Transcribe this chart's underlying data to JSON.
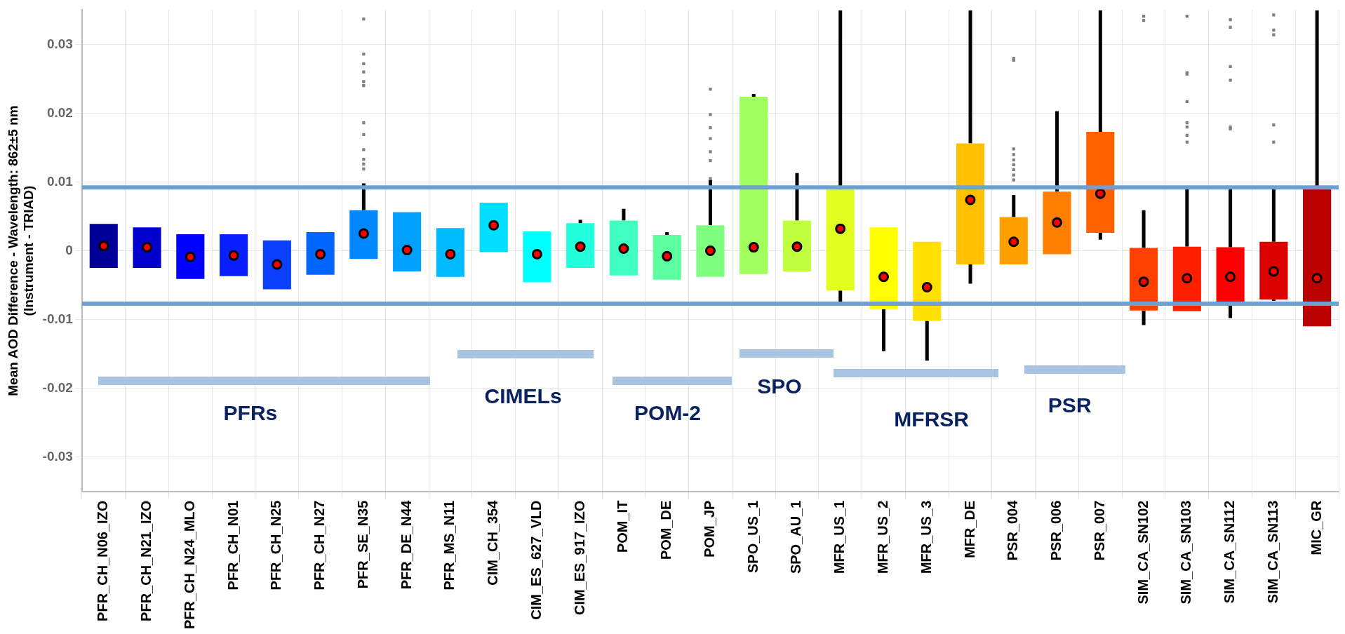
{
  "chart_data": {
    "type": "box",
    "ylabel": "Mean AOD Difference - Wavelength: 862±5 nm\n(Instrument - TRIAD)",
    "categories": [
      "PFR_CH_N06_IZO",
      "PFR_CH_N21_IZO",
      "PFR_CH_N24_MLO",
      "PFR_CH_N01",
      "PFR_CH_N25",
      "PFR_CH_N27",
      "PFR_SE_N35",
      "PFR_DE_N44",
      "PFR_MS_N11",
      "CIM_CH_354",
      "CIM_ES_627_VLD",
      "CIM_ES_917_IZO",
      "POM_IT",
      "POM_DE",
      "POM_JP",
      "SPO_US_1",
      "SPO_AU_1",
      "MFR_US_1",
      "MFR_US_2",
      "MFR_US_3",
      "MFR_DE",
      "PSR_004",
      "PSR_006",
      "PSR_007",
      "SIM_CA_SN102",
      "SIM_CA_SN103",
      "SIM_CA_SN112",
      "SIM_CA_SN113",
      "MIC_GR"
    ],
    "boxes": [
      {
        "low": -0.0025,
        "q1": -0.0025,
        "median": 0.0007,
        "q3": 0.0039,
        "high": 0.0039
      },
      {
        "low": -0.0025,
        "q1": -0.0025,
        "median": 0.0005,
        "q3": 0.0034,
        "high": 0.0034
      },
      {
        "low": -0.0041,
        "q1": -0.0041,
        "median": -0.0009,
        "q3": 0.0024,
        "high": 0.0024
      },
      {
        "low": -0.0037,
        "q1": -0.0037,
        "median": -0.0007,
        "q3": 0.0024,
        "high": 0.0024
      },
      {
        "low": -0.0056,
        "q1": -0.0056,
        "median": -0.002,
        "q3": 0.0015,
        "high": 0.0015
      },
      {
        "low": -0.0035,
        "q1": -0.0035,
        "median": -0.0005,
        "q3": 0.0027,
        "high": 0.0027
      },
      {
        "low": -0.0012,
        "q1": -0.0012,
        "median": 0.0025,
        "q3": 0.0059,
        "high": 0.0098,
        "outliers": [
          0.0337,
          0.0286,
          0.0272,
          0.026,
          0.0246,
          0.024,
          0.0186,
          0.0169,
          0.0147,
          0.0133,
          0.0126,
          0.0119
        ]
      },
      {
        "low": -0.003,
        "q1": -0.003,
        "median": 0.0001,
        "q3": 0.0056,
        "high": 0.0056
      },
      {
        "low": -0.0038,
        "q1": -0.0038,
        "median": -0.0005,
        "q3": 0.0033,
        "high": 0.0033
      },
      {
        "low": -0.0002,
        "q1": -0.0002,
        "median": 0.0037,
        "q3": 0.007,
        "high": 0.007
      },
      {
        "low": -0.0046,
        "q1": -0.0046,
        "median": -0.0005,
        "q3": 0.0028,
        "high": 0.0028
      },
      {
        "low": -0.0025,
        "q1": -0.0025,
        "median": 0.0006,
        "q3": 0.004,
        "high": 0.0045
      },
      {
        "low": -0.0036,
        "q1": -0.0036,
        "median": 0.0003,
        "q3": 0.0044,
        "high": 0.0061
      },
      {
        "low": -0.0042,
        "q1": -0.0042,
        "median": -0.0008,
        "q3": 0.0023,
        "high": 0.0027
      },
      {
        "low": -0.0038,
        "q1": -0.0038,
        "median": 0.0,
        "q3": 0.0037,
        "high": 0.0103,
        "outliers": [
          0.0235,
          0.0198,
          0.0179,
          0.0163,
          0.0144,
          0.0131,
          0.0105
        ]
      },
      {
        "low": -0.0034,
        "q1": -0.0034,
        "median": 0.0005,
        "q3": 0.0224,
        "high": 0.0228
      },
      {
        "low": -0.003,
        "q1": -0.003,
        "median": 0.0006,
        "q3": 0.0044,
        "high": 0.0113
      },
      {
        "low": -0.0078,
        "q1": -0.0058,
        "median": 0.0032,
        "q3": 0.0089,
        "high": 0.035
      },
      {
        "low": -0.0146,
        "q1": -0.0085,
        "median": -0.0038,
        "q3": 0.0034,
        "high": 0.0034
      },
      {
        "low": -0.016,
        "q1": -0.0102,
        "median": -0.0053,
        "q3": 0.0013,
        "high": 0.0013
      },
      {
        "low": -0.0048,
        "q1": -0.002,
        "median": 0.0074,
        "q3": 0.0156,
        "high": 0.035
      },
      {
        "low": -0.002,
        "q1": -0.002,
        "median": 0.0013,
        "q3": 0.0049,
        "high": 0.0081,
        "outliers": [
          0.028,
          0.0277,
          0.0148,
          0.014,
          0.0132,
          0.0125,
          0.0118,
          0.011,
          0.0103
        ]
      },
      {
        "low": -0.0005,
        "q1": -0.0005,
        "median": 0.0041,
        "q3": 0.0086,
        "high": 0.0203
      },
      {
        "low": 0.0016,
        "q1": 0.0026,
        "median": 0.0083,
        "q3": 0.0173,
        "high": 0.035
      },
      {
        "low": -0.0108,
        "q1": -0.0087,
        "median": -0.0045,
        "q3": 0.0004,
        "high": 0.0059,
        "outliers": [
          0.0341,
          0.0335
        ]
      },
      {
        "low": -0.0088,
        "q1": -0.0088,
        "median": -0.004,
        "q3": 0.0006,
        "high": 0.0091,
        "outliers": [
          0.0341,
          0.0259,
          0.0257,
          0.0217,
          0.0186,
          0.018,
          0.0168,
          0.0158
        ]
      },
      {
        "low": -0.0098,
        "q1": -0.0079,
        "median": -0.0038,
        "q3": 0.0005,
        "high": 0.009,
        "outliers": [
          0.0336,
          0.0325,
          0.0268,
          0.0248,
          0.018,
          0.0177
        ]
      },
      {
        "low": -0.0073,
        "q1": -0.0071,
        "median": -0.003,
        "q3": 0.0013,
        "high": 0.0091,
        "outliers": [
          0.0343,
          0.0321,
          0.0314,
          0.0183,
          0.0158
        ]
      },
      {
        "low": -0.011,
        "q1": -0.011,
        "median": -0.004,
        "q3": 0.0091,
        "high": 0.035
      }
    ],
    "colors": [
      "#000099",
      "#0000cc",
      "#0000ff",
      "#0a1fff",
      "#0a3fff",
      "#0066ff",
      "#0088ff",
      "#00a0ff",
      "#00bbff",
      "#00ddff",
      "#00ffff",
      "#22ffdd",
      "#40ffc0",
      "#5cffa0",
      "#7fff80",
      "#a0ff5c",
      "#c0ff40",
      "#e0ff20",
      "#ffff00",
      "#ffe000",
      "#ffc000",
      "#ffa000",
      "#ff8000",
      "#ff6000",
      "#ff4000",
      "#ff2000",
      "#ff0000",
      "#dd0000",
      "#bb0000"
    ],
    "ylim": [
      -0.035,
      0.035
    ],
    "yticks": [
      -0.03,
      -0.02,
      -0.01,
      0,
      0.01,
      0.02,
      0.03
    ],
    "grid": true,
    "ref_lines": [
      {
        "axis": "y",
        "value": 0.0092,
        "color": "#6fa0d0"
      },
      {
        "axis": "y",
        "value": -0.0077,
        "color": "#6fa0d0"
      }
    ],
    "annotations": [
      "PFRs",
      "CIMELs",
      "POM-2",
      "SPO",
      "MFRSR",
      "PSR"
    ]
  }
}
